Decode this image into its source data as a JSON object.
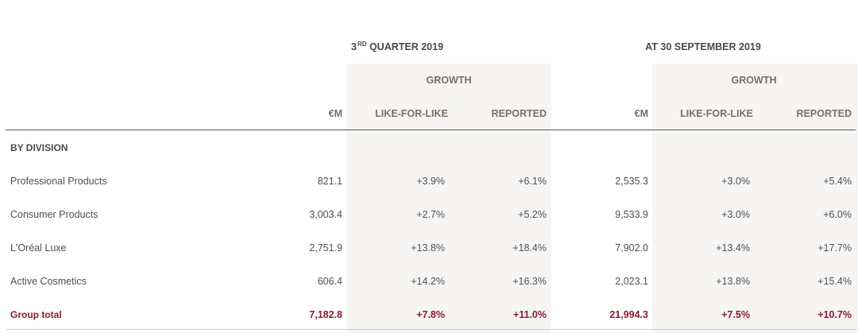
{
  "header": {
    "period_q3_prefix": "3",
    "period_q3_sup": "RD",
    "period_q3_suffix": " QUARTER 2019",
    "period_ytd": "AT 30 SEPTEMBER 2019",
    "growth": "GROWTH",
    "col_em": "€M",
    "col_lfl": "LIKE-FOR-LIKE",
    "col_reported": "REPORTED"
  },
  "section_label": "BY DIVISION",
  "rows": [
    {
      "label": "Professional Products",
      "q3_em": "821.1",
      "q3_lfl": "+3.9%",
      "q3_rep": "+6.1%",
      "ytd_em": "2,535.3",
      "ytd_lfl": "+3.0%",
      "ytd_rep": "+5.4%"
    },
    {
      "label": "Consumer Products",
      "q3_em": "3,003.4",
      "q3_lfl": "+2.7%",
      "q3_rep": "+5.2%",
      "ytd_em": "9,533.9",
      "ytd_lfl": "+3.0%",
      "ytd_rep": "+6.0%"
    },
    {
      "label": "L'Oréal Luxe",
      "q3_em": "2,751.9",
      "q3_lfl": "+13.8%",
      "q3_rep": "+18.4%",
      "ytd_em": "7,902.0",
      "ytd_lfl": "+13.4%",
      "ytd_rep": "+17.7%"
    },
    {
      "label": "Active Cosmetics",
      "q3_em": "606.4",
      "q3_lfl": "+14.2%",
      "q3_rep": "+16.3%",
      "ytd_em": "2,023.1",
      "ytd_lfl": "+13.8%",
      "ytd_rep": "+15.4%"
    }
  ],
  "total": {
    "label": "Group total",
    "q3_em": "7,182.8",
    "q3_lfl": "+7.8%",
    "q3_rep": "+11.0%",
    "ytd_em": "21,994.3",
    "ytd_lfl": "+7.5%",
    "ytd_rep": "+10.7%"
  },
  "colors": {
    "total_text": "#8c1c30",
    "header_text": "#7a6f66",
    "shade": "#f6f5f4"
  }
}
